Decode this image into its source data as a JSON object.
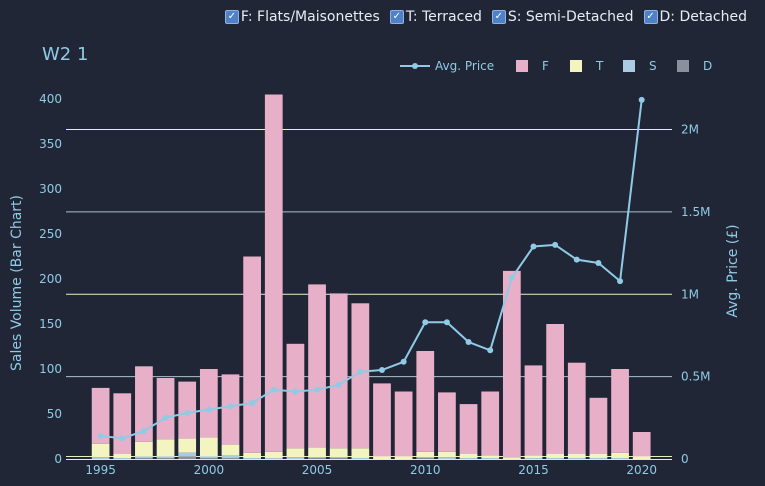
{
  "filters": [
    {
      "label": "F: Flats/Maisonettes",
      "checked": true
    },
    {
      "label": "T: Terraced",
      "checked": true
    },
    {
      "label": "S: Semi-Detached",
      "checked": true
    },
    {
      "label": "D: Detached",
      "checked": true
    }
  ],
  "chart_data": {
    "type": "bar",
    "title": "W2 1",
    "stacked": true,
    "ylabel": "Sales Volume (Bar Chart)",
    "y2label": "Avg. Price (£)",
    "ylim": [
      0,
      410
    ],
    "y2lim": [
      0,
      2240000
    ],
    "xlim": [
      1993.4,
      2021.4
    ],
    "x_ticks": [
      1995,
      2000,
      2005,
      2010,
      2015,
      2020
    ],
    "y_ticks": [
      0,
      50,
      100,
      150,
      200,
      250,
      300,
      350,
      400
    ],
    "y2_ticks": [
      {
        "value": 0,
        "label": "0"
      },
      {
        "value": 500000,
        "label": "0.5M"
      },
      {
        "value": 1000000,
        "label": "1M"
      },
      {
        "value": 1500000,
        "label": "1.5M"
      },
      {
        "value": 2000000,
        "label": "2M"
      }
    ],
    "x": [
      1995,
      1996,
      1997,
      1998,
      1999,
      2000,
      2001,
      2002,
      2003,
      2004,
      2005,
      2006,
      2007,
      2008,
      2009,
      2010,
      2011,
      2012,
      2013,
      2014,
      2015,
      2016,
      2017,
      2018,
      2019,
      2020
    ],
    "legend_position": "top-right",
    "legend": [
      {
        "label": "Avg. Price",
        "type": "line",
        "color": "#8fcbe6"
      },
      {
        "label": "F",
        "type": "bar",
        "color": "#e8afc8"
      },
      {
        "label": "T",
        "type": "bar",
        "color": "#f4f4c0"
      },
      {
        "label": "S",
        "type": "bar",
        "color": "#a9cbe3"
      },
      {
        "label": "D",
        "type": "bar",
        "color": "#8b8f9e"
      }
    ],
    "series": [
      {
        "name": "F",
        "color": "#e8afc8",
        "values": [
          62,
          67,
          84,
          68,
          63,
          76,
          78,
          218,
          397,
          116,
          181,
          172,
          161,
          81,
          72,
          112,
          66,
          55,
          71,
          207,
          100,
          144,
          101,
          62,
          93,
          27
        ]
      },
      {
        "name": "T",
        "color": "#f4f4c0",
        "values": [
          15,
          5,
          16,
          19,
          16,
          21,
          12,
          6,
          7,
          10,
          11,
          10,
          11,
          3,
          3,
          6,
          6,
          5,
          3,
          2,
          3,
          5,
          5,
          5,
          6,
          3
        ]
      },
      {
        "name": "S",
        "color": "#a9cbe3",
        "values": [
          2,
          1,
          2,
          2,
          4,
          2,
          3,
          1,
          1,
          2,
          1,
          1,
          1,
          0,
          0,
          1,
          2,
          1,
          1,
          0,
          1,
          1,
          1,
          1,
          1,
          0
        ]
      },
      {
        "name": "D",
        "color": "#8b8f9e",
        "values": [
          0,
          0,
          1,
          1,
          3,
          1,
          1,
          0,
          0,
          0,
          1,
          1,
          0,
          0,
          0,
          1,
          0,
          0,
          0,
          0,
          0,
          0,
          0,
          0,
          0,
          0
        ]
      }
    ],
    "line": {
      "name": "Avg. Price",
      "color": "#8fcbe6",
      "values": [
        140000,
        125000,
        170000,
        250000,
        280000,
        300000,
        320000,
        340000,
        420000,
        410000,
        420000,
        450000,
        530000,
        540000,
        590000,
        830000,
        830000,
        710000,
        660000,
        1100000,
        1290000,
        1300000,
        1210000,
        1190000,
        1080000,
        2180000
      ]
    }
  }
}
